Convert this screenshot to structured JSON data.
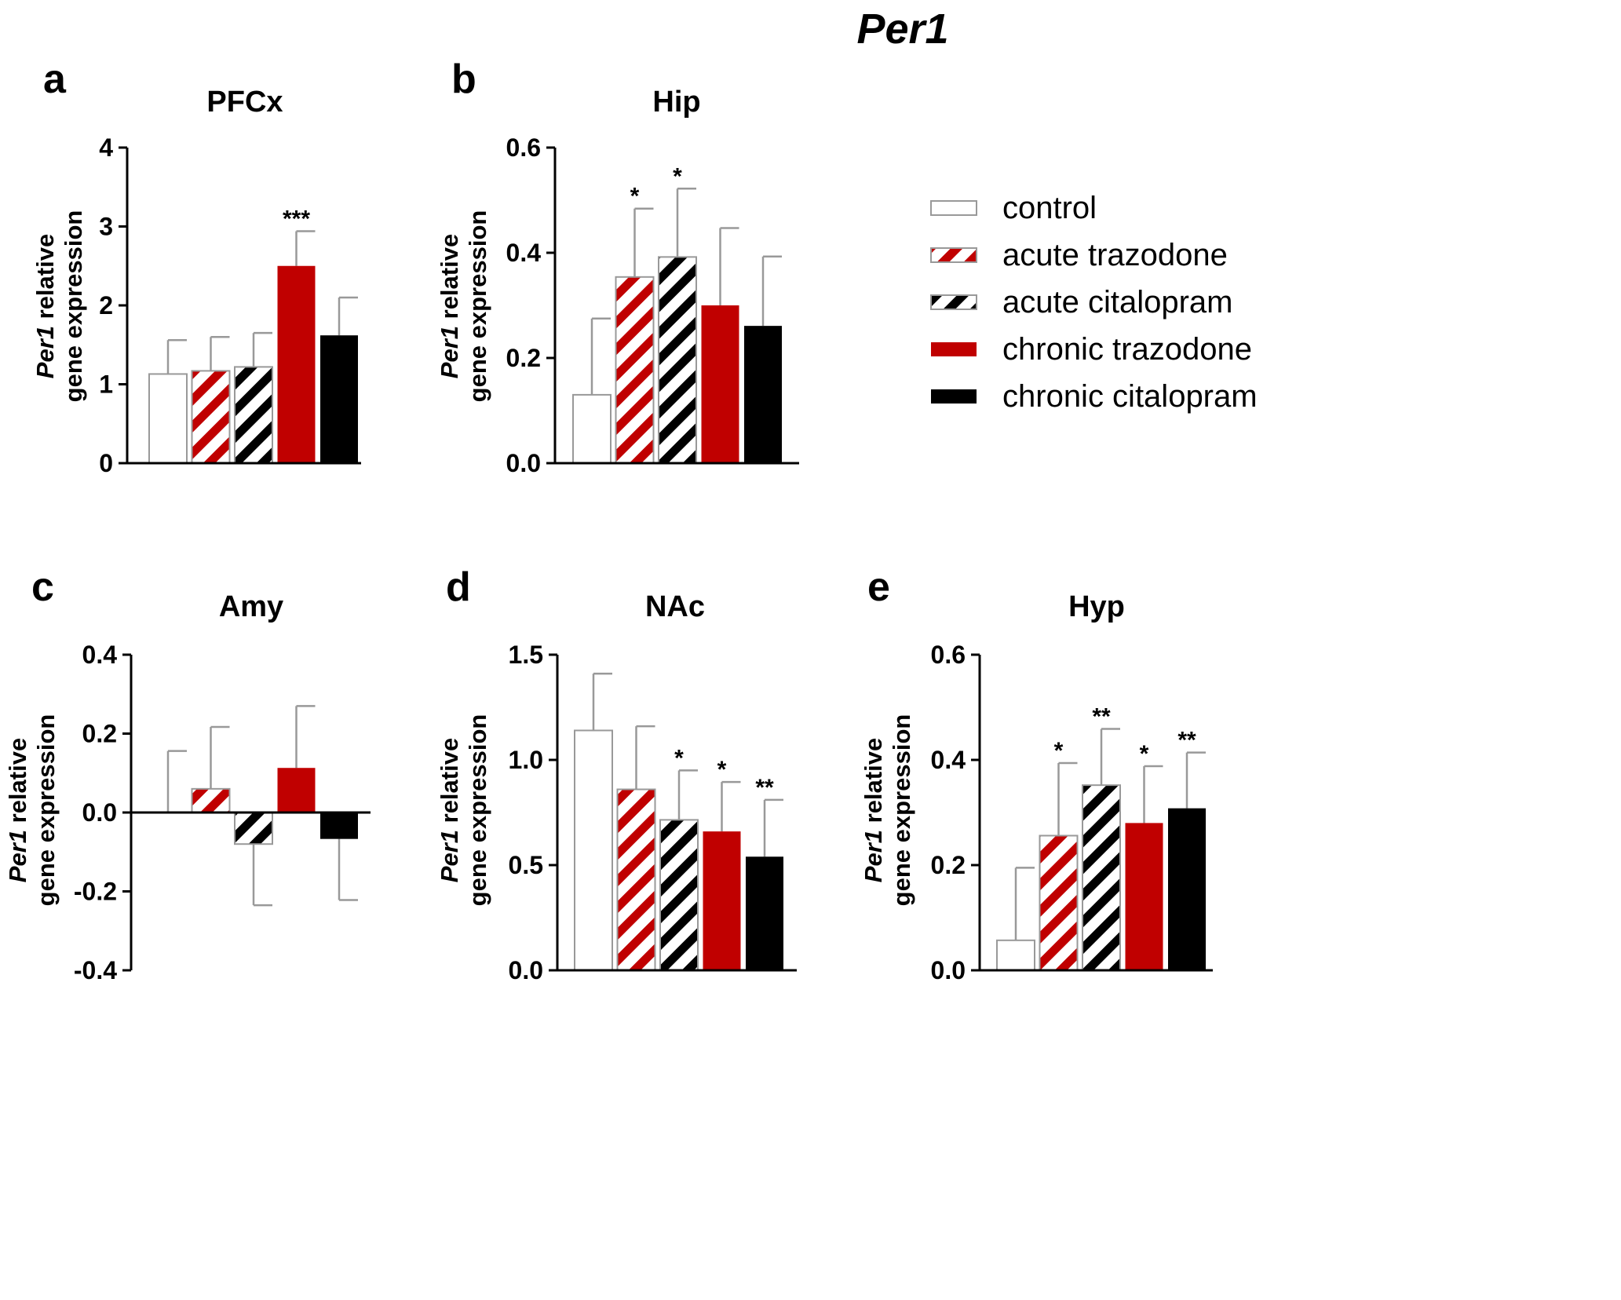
{
  "figure_title": "Per1",
  "legend": [
    {
      "label": "control",
      "fill": "#ffffff",
      "stripe": null
    },
    {
      "label": "acute trazodone",
      "fill": "#ffffff",
      "stripe": "#c00000"
    },
    {
      "label": "acute citalopram",
      "fill": "#ffffff",
      "stripe": "#000000"
    },
    {
      "label": "chronic trazodone",
      "fill": "#c00000",
      "stripe": null
    },
    {
      "label": "chronic citalopram",
      "fill": "#000000",
      "stripe": null
    }
  ],
  "colors": {
    "red": "#c00000",
    "black": "#000000",
    "white": "#ffffff",
    "error_bar": "#999999"
  },
  "chart_data": [
    {
      "type": "bar",
      "letter": "a",
      "title": "PFCx",
      "ylabel_gene": "Per1",
      "ylabel_rest": " relative",
      "ylabel_line2": "gene expression",
      "categories": [
        "control",
        "acute trazodone",
        "acute citalopram",
        "chronic trazodone",
        "chronic citalopram"
      ],
      "values": [
        1.13,
        1.17,
        1.22,
        2.5,
        1.62
      ],
      "errors": [
        0.43,
        0.43,
        0.43,
        0.44,
        0.48
      ],
      "significance": [
        "",
        "",
        "",
        "***",
        ""
      ],
      "ylim": [
        0,
        4
      ],
      "yticks": [
        0,
        1,
        2,
        3,
        4
      ],
      "ytick_labels": [
        "0",
        "1",
        "2",
        "3",
        "4"
      ]
    },
    {
      "type": "bar",
      "letter": "b",
      "title": "Hip",
      "ylabel_gene": "Per1",
      "ylabel_rest": " relative",
      "ylabel_line2": "gene expression",
      "categories": [
        "control",
        "acute trazodone",
        "acute citalopram",
        "chronic trazodone",
        "chronic citalopram"
      ],
      "values": [
        0.13,
        0.354,
        0.392,
        0.3,
        0.261
      ],
      "errors": [
        0.145,
        0.13,
        0.13,
        0.147,
        0.132
      ],
      "significance": [
        "",
        "*",
        "*",
        "",
        ""
      ],
      "ylim": [
        0,
        0.6
      ],
      "yticks": [
        0,
        0.2,
        0.4,
        0.6
      ],
      "ytick_labels": [
        "0.0",
        "0.2",
        "0.4",
        "0.6"
      ]
    },
    {
      "type": "bar",
      "letter": "c",
      "title": "Amy",
      "ylabel_gene": "Per1",
      "ylabel_rest": " relative",
      "ylabel_line2": "gene expression",
      "categories": [
        "control",
        "acute trazodone",
        "acute citalopram",
        "chronic trazodone",
        "chronic citalopram"
      ],
      "values": [
        0.0,
        0.06,
        -0.08,
        0.113,
        -0.067
      ],
      "errors": [
        0.156,
        0.157,
        0.155,
        0.157,
        0.155
      ],
      "significance": [
        "",
        "",
        "",
        "",
        ""
      ],
      "ylim": [
        -0.4,
        0.4
      ],
      "yticks": [
        -0.4,
        -0.2,
        0,
        0.2,
        0.4
      ],
      "ytick_labels": [
        "-0.4",
        "-0.2",
        "0.0",
        "0.2",
        "0.4"
      ]
    },
    {
      "type": "bar",
      "letter": "d",
      "title": "NAc",
      "ylabel_gene": "Per1",
      "ylabel_rest": " relative",
      "ylabel_line2": "gene expression",
      "categories": [
        "control",
        "acute trazodone",
        "acute citalopram",
        "chronic trazodone",
        "chronic citalopram"
      ],
      "values": [
        1.14,
        0.86,
        0.715,
        0.66,
        0.54
      ],
      "errors": [
        0.27,
        0.3,
        0.235,
        0.235,
        0.27
      ],
      "significance": [
        "",
        "",
        "*",
        "*",
        "**"
      ],
      "ylim": [
        0,
        1.5
      ],
      "yticks": [
        0,
        0.5,
        1.0,
        1.5
      ],
      "ytick_labels": [
        "0.0",
        "0.5",
        "1.0",
        "1.5"
      ]
    },
    {
      "type": "bar",
      "letter": "e",
      "title": "Hyp",
      "ylabel_gene": "Per1",
      "ylabel_rest": " relative",
      "ylabel_line2": "gene expression",
      "categories": [
        "control",
        "acute trazodone",
        "acute citalopram",
        "chronic trazodone",
        "chronic citalopram"
      ],
      "values": [
        0.057,
        0.256,
        0.352,
        0.28,
        0.308
      ],
      "errors": [
        0.138,
        0.138,
        0.107,
        0.108,
        0.106
      ],
      "significance": [
        "",
        "*",
        "**",
        "*",
        "**"
      ],
      "ylim": [
        0,
        0.6
      ],
      "yticks": [
        0,
        0.2,
        0.4,
        0.6
      ],
      "ytick_labels": [
        "0.0",
        "0.2",
        "0.4",
        "0.6"
      ]
    }
  ]
}
